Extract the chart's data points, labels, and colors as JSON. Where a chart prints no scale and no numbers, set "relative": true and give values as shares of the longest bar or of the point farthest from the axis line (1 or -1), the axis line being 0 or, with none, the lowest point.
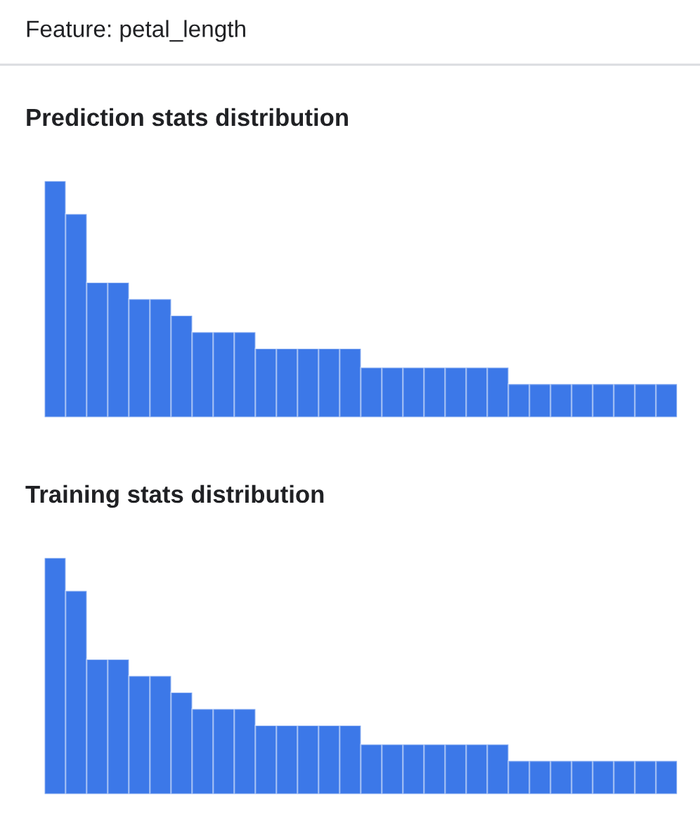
{
  "chart_data": [
    {
      "type": "other",
      "title": "Feature: petal_length"
    },
    {
      "type": "bar",
      "title": "Prediction stats distribution",
      "relative": true,
      "tick_labels": false,
      "color": "#3c78e8",
      "categories": [
        null,
        null,
        null,
        null,
        null,
        null,
        null,
        null,
        null,
        null,
        null,
        null,
        null,
        null,
        null,
        null,
        null,
        null,
        null,
        null,
        null,
        null,
        null,
        null,
        null,
        null,
        null,
        null,
        null,
        null
      ],
      "values": [
        1,
        0.86,
        0.57,
        0.57,
        0.5,
        0.5,
        0.43,
        0.36,
        0.36,
        0.36,
        0.29,
        0.29,
        0.29,
        0.29,
        0.29,
        0.21,
        0.21,
        0.21,
        0.21,
        0.21,
        0.21,
        0.21,
        0.14,
        0.14,
        0.14,
        0.14,
        0.14,
        0.14,
        0.14,
        0.14
      ]
    },
    {
      "type": "bar",
      "title": "Training stats distribution",
      "relative": true,
      "tick_labels": false,
      "color": "#3c78e8",
      "categories": [
        null,
        null,
        null,
        null,
        null,
        null,
        null,
        null,
        null,
        null,
        null,
        null,
        null,
        null,
        null,
        null,
        null,
        null,
        null,
        null,
        null,
        null,
        null,
        null,
        null,
        null,
        null,
        null,
        null,
        null
      ],
      "values": [
        1,
        0.86,
        0.57,
        0.57,
        0.5,
        0.5,
        0.43,
        0.36,
        0.36,
        0.36,
        0.29,
        0.29,
        0.29,
        0.29,
        0.29,
        0.21,
        0.21,
        0.21,
        0.21,
        0.21,
        0.21,
        0.21,
        0.14,
        0.14,
        0.14,
        0.14,
        0.14,
        0.14,
        0.14,
        0.14
      ]
    }
  ]
}
